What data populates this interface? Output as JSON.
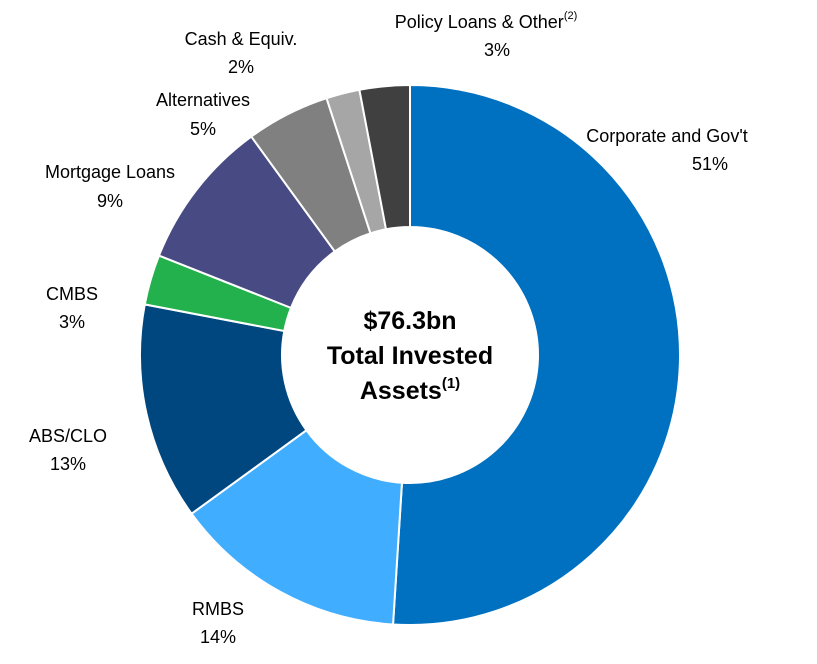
{
  "chart_data": {
    "type": "donut",
    "categories": [
      "Corporate and Gov't",
      "RMBS",
      "ABS/CLO",
      "CMBS",
      "Mortgage Loans",
      "Alternatives",
      "Cash & Equiv.",
      "Policy Loans & Other"
    ],
    "category_footnotes": [
      null,
      null,
      null,
      null,
      null,
      null,
      null,
      "(2)"
    ],
    "values": [
      51,
      14,
      13,
      3,
      9,
      5,
      2,
      3
    ],
    "value_labels": [
      "51%",
      "14%",
      "13%",
      "3%",
      "9%",
      "5%",
      "2%",
      "3%"
    ],
    "colors": [
      "#0070c0",
      "#41adff",
      "#00477f",
      "#22b14c",
      "#484b83",
      "#808080",
      "#a6a6a6",
      "#404040"
    ],
    "center_text": [
      "$76.3bn",
      "Total Invested",
      "Assets"
    ],
    "center_footnote": "(1)"
  }
}
